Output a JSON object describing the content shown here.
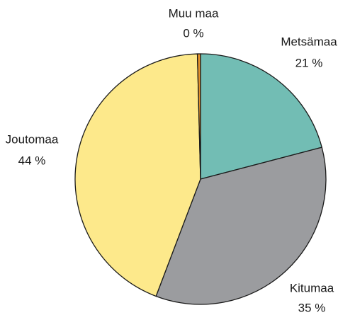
{
  "chart_data": {
    "type": "pie",
    "categories": [
      "Metsämaa",
      "Kitumaa",
      "Joutomaa",
      "Muu maa"
    ],
    "values": [
      21,
      35,
      44,
      0.4
    ],
    "value_labels": [
      "21 %",
      "35 %",
      "44 %",
      "0 %"
    ],
    "colors": [
      "#72bdb4",
      "#9b9c9f",
      "#fde98b",
      "#e8942b"
    ]
  }
}
